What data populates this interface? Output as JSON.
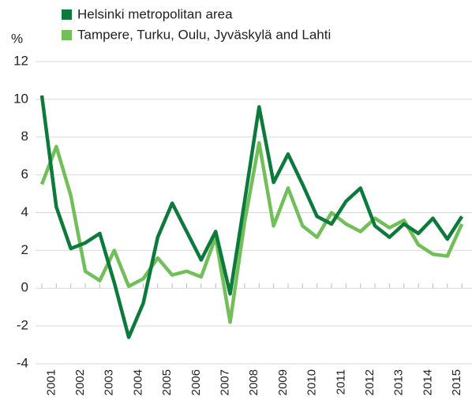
{
  "chart_data": {
    "type": "line",
    "y_axis_label": "%",
    "categories": [
      null,
      "2001",
      null,
      "2002",
      null,
      "2003",
      null,
      "2004",
      null,
      "2005",
      null,
      "2006",
      null,
      "2007",
      null,
      "2008",
      null,
      "2009",
      null,
      "2010",
      null,
      "2011",
      null,
      "2012",
      null,
      "2013",
      null,
      "2014",
      null,
      "2015"
    ],
    "series": [
      {
        "name": "Helsinki metropolitan area",
        "color": "#0b7a3b",
        "values": [
          10.2,
          4.3,
          2.1,
          2.4,
          2.9,
          0.3,
          -2.6,
          -0.8,
          2.7,
          4.5,
          3.0,
          1.5,
          3.0,
          -0.3,
          4.6,
          9.6,
          5.6,
          7.1,
          5.5,
          3.8,
          3.4,
          4.6,
          5.3,
          3.3,
          2.7,
          3.4,
          2.9,
          3.7,
          2.6,
          3.8
        ]
      },
      {
        "name": "Tampere, Turku, Oulu, Jyväskylä and Lahti",
        "color": "#72bf5a",
        "values": [
          5.5,
          7.5,
          4.9,
          0.9,
          0.4,
          2.0,
          0.1,
          0.5,
          1.6,
          0.7,
          0.9,
          0.6,
          2.7,
          -1.8,
          3.5,
          7.7,
          3.3,
          5.3,
          3.3,
          2.7,
          4.0,
          3.4,
          3.0,
          3.7,
          3.2,
          3.6,
          2.3,
          1.8,
          1.7,
          3.4
        ]
      }
    ],
    "ylim": [
      -4,
      12
    ],
    "yticks": [
      -4,
      -2,
      0,
      2,
      4,
      6,
      8,
      10,
      12
    ],
    "grid": true,
    "legend": "top"
  }
}
